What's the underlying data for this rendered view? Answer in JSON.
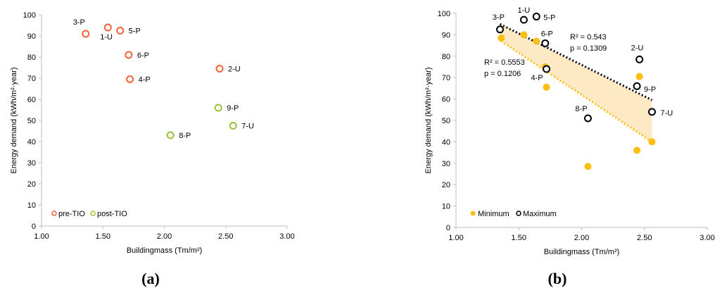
{
  "colors": {
    "pre_tio": "#f4603b",
    "post_tio": "#99c23a",
    "minimum": "#fdbf0f",
    "maximum": "#000000",
    "band": "#fde9c4",
    "axis": "#bfbfbf"
  },
  "panel_labels": {
    "a": "(a)",
    "b": "(b)"
  },
  "chart_data": [
    {
      "type": "scatter",
      "xlabel": "Buildingmass (Tm/m²)",
      "ylabel": "Energy demand (kWh/m²·year)",
      "xlim": [
        1.0,
        3.0
      ],
      "ylim": [
        0,
        100
      ],
      "xticks": [
        "1.00",
        "1.50",
        "2.00",
        "2.50",
        "3.00"
      ],
      "yticks": [
        "0",
        "10",
        "20",
        "30",
        "40",
        "50",
        "60",
        "70",
        "80",
        "90",
        "100"
      ],
      "legend_position": "bottom-left",
      "series": [
        {
          "name": "pre-TIO",
          "marker": "open-circle",
          "color": "#f4603b",
          "points": [
            {
              "label": "3-P",
              "x": 1.36,
              "y": 91.0
            },
            {
              "label": "1-U",
              "x": 1.54,
              "y": 94.0
            },
            {
              "label": "5-P",
              "x": 1.64,
              "y": 92.5
            },
            {
              "label": "6-P",
              "x": 1.71,
              "y": 81.0
            },
            {
              "label": "4-P",
              "x": 1.72,
              "y": 69.5
            },
            {
              "label": "2-U",
              "x": 2.45,
              "y": 74.5
            }
          ]
        },
        {
          "name": "post-TIO",
          "marker": "open-circle",
          "color": "#99c23a",
          "points": [
            {
              "label": "9-P",
              "x": 2.44,
              "y": 56.0
            },
            {
              "label": "7-U",
              "x": 2.56,
              "y": 47.5
            },
            {
              "label": "8-P",
              "x": 2.05,
              "y": 43.0
            }
          ]
        }
      ]
    },
    {
      "type": "scatter",
      "xlabel": "Buildingmass (Tm/m²)",
      "ylabel": "Energy demand (kWh/m²·year)",
      "xlim": [
        1.0,
        3.0
      ],
      "ylim": [
        0,
        100
      ],
      "xticks": [
        "1.00",
        "1.50",
        "2.00",
        "2.50",
        "3.00"
      ],
      "yticks": [
        "0",
        "10",
        "20",
        "30",
        "40",
        "50",
        "60",
        "70",
        "80",
        "90",
        "100"
      ],
      "legend_position": "bottom-left",
      "series": [
        {
          "name": "Minimum",
          "marker": "filled-circle",
          "color": "#fdbf0f",
          "points": [
            {
              "x": 1.36,
              "y": 88.5
            },
            {
              "x": 1.54,
              "y": 90.0
            },
            {
              "x": 1.64,
              "y": 87.0
            },
            {
              "x": 1.71,
              "y": 75.0
            },
            {
              "x": 1.72,
              "y": 65.5
            },
            {
              "x": 2.05,
              "y": 28.5
            },
            {
              "x": 2.44,
              "y": 36.0
            },
            {
              "x": 2.46,
              "y": 70.5
            },
            {
              "x": 2.56,
              "y": 40.0
            }
          ]
        },
        {
          "name": "Maximum",
          "marker": "open-circle",
          "color": "#000000",
          "points": [
            {
              "label": "3-P",
              "x": 1.35,
              "y": 92.5
            },
            {
              "label": "1-U",
              "x": 1.54,
              "y": 97.0
            },
            {
              "label": "5-P",
              "x": 1.64,
              "y": 98.5
            },
            {
              "label": "6-P",
              "x": 1.71,
              "y": 86.0
            },
            {
              "label": "4-P",
              "x": 1.72,
              "y": 74.0
            },
            {
              "label": "8-P",
              "x": 2.05,
              "y": 51.0
            },
            {
              "label": "9-P",
              "x": 2.44,
              "y": 66.0
            },
            {
              "label": "2-U",
              "x": 2.46,
              "y": 78.5
            },
            {
              "label": "7-U",
              "x": 2.56,
              "y": 54.0
            }
          ]
        }
      ],
      "trendlines": [
        {
          "series": "Maximum",
          "color": "#000000",
          "style": "dotted",
          "x": [
            1.35,
            2.56
          ],
          "y": [
            95.0,
            59.5
          ]
        },
        {
          "series": "Minimum",
          "color": "#fdbf0f",
          "style": "dotted",
          "x": [
            1.36,
            2.56
          ],
          "y": [
            87.0,
            40.0
          ]
        }
      ],
      "annotations": [
        {
          "lines": [
            "R² = 0.543",
            "p = 0.1309"
          ]
        },
        {
          "lines": [
            "R² = 0.5553",
            "p = 0.1206"
          ]
        }
      ]
    }
  ]
}
